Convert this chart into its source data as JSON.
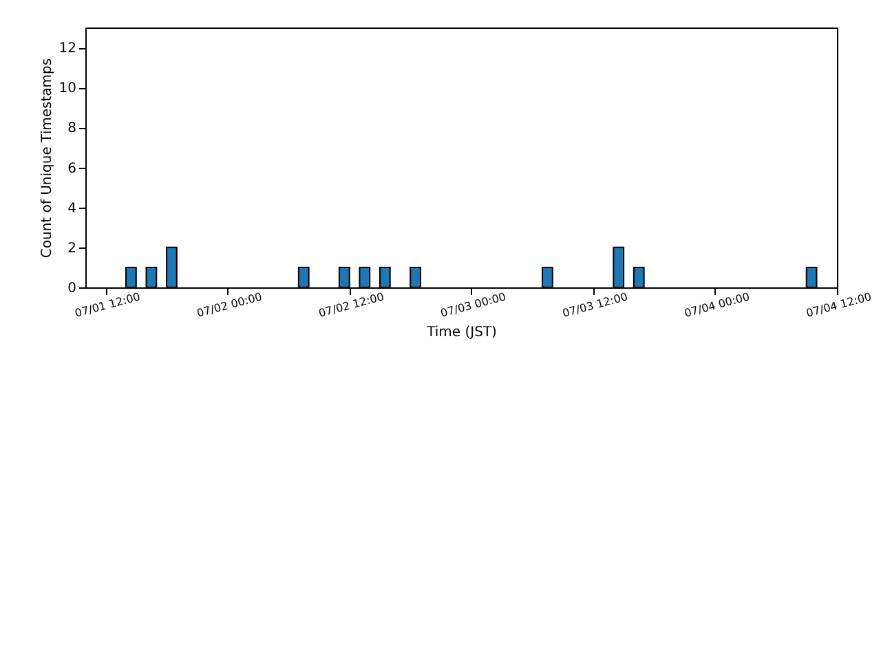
{
  "chart_data": {
    "type": "histogram",
    "xlabel": "Time (JST)",
    "ylabel": "Count of Unique Timestamps",
    "color": "#1f77b4",
    "bins": [
      "--07-01T11:00",
      "--07-01T12:00",
      "--07-01T13:00",
      "--07-01T14:00",
      "--07-01T15:00",
      "--07-01T16:00",
      "--07-01T17:00",
      "--07-01T18:00",
      "--07-01T19:00",
      "--07-01T20:00",
      "--07-01T21:00",
      "--07-01T22:00",
      "--07-01T23:00",
      "--07-02T00:00",
      "--07-02T01:00",
      "--07-02T02:00",
      "--07-02T03:00",
      "--07-02T04:00",
      "--07-02T05:00",
      "--07-02T06:00",
      "--07-02T07:00",
      "--07-02T08:00",
      "--07-02T09:00",
      "--07-02T10:00",
      "--07-02T11:00",
      "--07-02T12:00",
      "--07-02T13:00",
      "--07-02T14:00",
      "--07-02T15:00",
      "--07-02T16:00",
      "--07-02T17:00",
      "--07-02T18:00",
      "--07-02T19:00",
      "--07-02T20:00",
      "--07-02T21:00",
      "--07-02T22:00",
      "--07-02T23:00",
      "--07-03T00:00",
      "--07-03T01:00",
      "--07-03T02:00",
      "--07-03T03:00",
      "--07-03T04:00",
      "--07-03T05:00",
      "--07-03T06:00",
      "--07-03T07:00",
      "--07-03T08:00",
      "--07-03T09:00",
      "--07-03T10:00",
      "--07-03T11:00",
      "--07-03T12:00",
      "--07-03T13:00",
      "--07-03T14:00",
      "--07-03T15:00",
      "--07-03T16:00",
      "--07-03T17:00",
      "--07-03T18:00",
      "--07-03T19:00",
      "--07-03T20:00",
      "--07-03T21:00",
      "--07-03T22:00",
      "--07-03T23:00",
      "--07-04T00:00",
      "--07-04T01:00",
      "--07-04T02:00",
      "--07-04T03:00",
      "--07-04T04:00",
      "--07-04T05:00",
      "--07-04T06:00",
      "--07-04T07:00",
      "--07-04T08:00",
      "--07-04T09:00",
      "--07-04T10:00"
    ],
    "values": [
      0,
      0,
      0,
      1,
      0,
      1,
      0,
      2,
      0,
      0,
      0,
      0,
      0,
      0,
      0,
      0,
      0,
      0,
      0,
      0,
      1,
      0,
      0,
      0,
      1,
      0,
      1,
      0,
      1,
      0,
      0,
      1,
      0,
      0,
      0,
      0,
      0,
      0,
      0,
      0,
      0,
      0,
      0,
      0,
      1,
      0,
      0,
      0,
      0,
      0,
      0,
      2,
      0,
      1,
      0,
      0,
      0,
      0,
      0,
      0,
      0,
      0,
      0,
      0,
      0,
      0,
      0,
      0,
      0,
      0,
      1
    ],
    "xlim": [
      "--07-01T10:00",
      "--07-04T12:00"
    ],
    "xticks": [
      {
        "value": "--07-01T12:00",
        "label": "07/01 12:00"
      },
      {
        "value": "--07-02T00:00",
        "label": "07/02 00:00"
      },
      {
        "value": "--07-02T12:00",
        "label": "07/02 12:00"
      },
      {
        "value": "--07-03T00:00",
        "label": "07/03 00:00"
      },
      {
        "value": "--07-03T12:00",
        "label": "07/03 12:00"
      },
      {
        "value": "--07-04T00:00",
        "label": "07/04 00:00"
      },
      {
        "value": "--07-04T12:00",
        "label": "07/04 12:00"
      }
    ],
    "ylim": [
      0,
      13
    ],
    "yticks": [
      0,
      2,
      4,
      6,
      8,
      10,
      12
    ],
    "grid": false
  }
}
